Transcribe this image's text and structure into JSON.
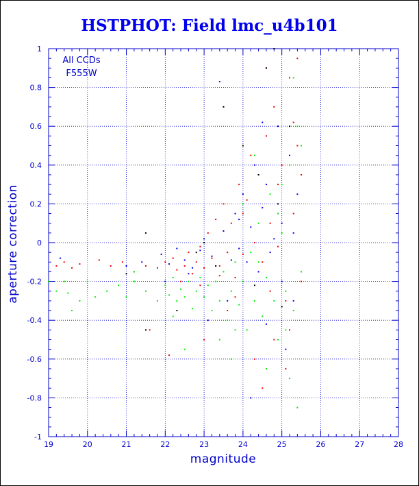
{
  "chart_data": {
    "type": "scatter",
    "title": "HSTPHOT: Field lmc_u4b101",
    "xlabel": "magnitude",
    "ylabel": "aperture correction",
    "xlim": [
      19,
      28
    ],
    "ylim": [
      -1,
      1
    ],
    "x_ticks": [
      19,
      20,
      21,
      22,
      23,
      24,
      25,
      26,
      27,
      28
    ],
    "y_ticks": [
      -1,
      -0.8,
      -0.6,
      -0.4,
      -0.2,
      0,
      0.2,
      0.4,
      0.6,
      0.8,
      1
    ],
    "grid": true,
    "annotations": [
      "All CCDs",
      "F555W"
    ],
    "series": [
      {
        "color": "#ee0000",
        "points": [
          [
            19.2,
            -0.12
          ],
          [
            19.4,
            -0.1
          ],
          [
            19.6,
            -0.13
          ],
          [
            19.8,
            -0.11
          ],
          [
            20.3,
            -0.09
          ],
          [
            20.6,
            -0.12
          ],
          [
            20.9,
            -0.1
          ],
          [
            21.2,
            -0.15
          ],
          [
            21.5,
            -0.12
          ],
          [
            21.8,
            -0.13
          ],
          [
            22.0,
            -0.1
          ],
          [
            22.2,
            -0.08
          ],
          [
            22.3,
            -0.14
          ],
          [
            22.5,
            -0.12
          ],
          [
            22.6,
            -0.05
          ],
          [
            22.7,
            -0.16
          ],
          [
            22.8,
            -0.1
          ],
          [
            22.9,
            -0.02
          ],
          [
            23.0,
            -0.13
          ],
          [
            23.1,
            0.05
          ],
          [
            23.2,
            -0.08
          ],
          [
            23.3,
            0.12
          ],
          [
            23.4,
            -0.12
          ],
          [
            23.5,
            0.2
          ],
          [
            23.6,
            -0.05
          ],
          [
            23.7,
            0.1
          ],
          [
            23.8,
            -0.18
          ],
          [
            23.9,
            0.3
          ],
          [
            24.0,
            -0.06
          ],
          [
            24.1,
            0.22
          ],
          [
            24.2,
            0.45
          ],
          [
            24.3,
            0.0
          ],
          [
            24.4,
            0.35
          ],
          [
            24.5,
            -0.1
          ],
          [
            24.6,
            0.55
          ],
          [
            24.7,
            -0.25
          ],
          [
            24.8,
            0.7
          ],
          [
            24.9,
            -0.02
          ],
          [
            25.0,
            0.4
          ],
          [
            25.1,
            -0.3
          ],
          [
            25.2,
            0.85
          ],
          [
            25.3,
            0.15
          ],
          [
            25.4,
            0.95
          ],
          [
            25.5,
            -0.2
          ],
          [
            23.0,
            -0.5
          ],
          [
            23.6,
            -0.35
          ],
          [
            24.3,
            -0.6
          ],
          [
            24.8,
            -0.5
          ],
          [
            25.2,
            -0.45
          ],
          [
            25.4,
            0.5
          ],
          [
            24.6,
            0.9
          ],
          [
            22.1,
            -0.58
          ],
          [
            21.6,
            -0.45
          ],
          [
            24.0,
            0.15
          ],
          [
            23.8,
            -0.28
          ],
          [
            22.4,
            -0.2
          ],
          [
            25.3,
            0.62
          ],
          [
            24.9,
            0.3
          ],
          [
            25.1,
            -0.65
          ],
          [
            24.5,
            -0.75
          ],
          [
            24.7,
            0.1
          ],
          [
            25.5,
            0.35
          ],
          [
            23.4,
            -0.17
          ],
          [
            22.9,
            -0.22
          ]
        ]
      },
      {
        "color": "#0000ee",
        "points": [
          [
            19.3,
            -0.08
          ],
          [
            21.0,
            -0.12
          ],
          [
            21.4,
            -0.1
          ],
          [
            21.9,
            -0.06
          ],
          [
            22.1,
            -0.11
          ],
          [
            22.3,
            -0.03
          ],
          [
            22.5,
            -0.09
          ],
          [
            22.7,
            -0.13
          ],
          [
            22.9,
            -0.04
          ],
          [
            23.0,
            0.02
          ],
          [
            23.2,
            -0.07
          ],
          [
            23.3,
            -0.12
          ],
          [
            23.5,
            0.06
          ],
          [
            23.7,
            -0.09
          ],
          [
            23.8,
            0.15
          ],
          [
            23.9,
            -0.03
          ],
          [
            24.0,
            0.25
          ],
          [
            24.1,
            -0.1
          ],
          [
            24.2,
            0.08
          ],
          [
            24.3,
            0.4
          ],
          [
            24.4,
            -0.15
          ],
          [
            24.5,
            0.18
          ],
          [
            24.6,
            0.3
          ],
          [
            24.7,
            -0.05
          ],
          [
            24.9,
            0.6
          ],
          [
            25.0,
            0.1
          ],
          [
            25.2,
            0.45
          ],
          [
            25.3,
            -0.3
          ],
          [
            25.4,
            0.25
          ],
          [
            22.0,
            -0.2
          ],
          [
            23.6,
            -0.3
          ],
          [
            24.6,
            -0.42
          ],
          [
            25.1,
            -0.55
          ],
          [
            23.4,
            0.83
          ],
          [
            24.5,
            0.62
          ],
          [
            25.3,
            0.05
          ],
          [
            24.2,
            -0.8
          ],
          [
            23.1,
            -0.4
          ],
          [
            22.6,
            -0.16
          ],
          [
            24.8,
            0.02
          ],
          [
            25.0,
            -0.2
          ],
          [
            23.9,
            0.12
          ]
        ]
      },
      {
        "color": "#000000",
        "points": [
          [
            21.0,
            -0.16
          ],
          [
            21.5,
            0.05
          ],
          [
            22.3,
            -0.35
          ],
          [
            23.0,
            0.0
          ],
          [
            23.5,
            0.7
          ],
          [
            24.0,
            0.5
          ],
          [
            24.6,
            0.9
          ],
          [
            24.8,
            1.0
          ],
          [
            25.2,
            0.6
          ],
          [
            24.3,
            -0.22
          ],
          [
            21.5,
            -0.45
          ],
          [
            23.3,
            -0.12
          ],
          [
            25.0,
            -0.33
          ],
          [
            24.9,
            0.2
          ],
          [
            22.8,
            -0.05
          ],
          [
            24.4,
            0.35
          ]
        ]
      },
      {
        "color": "#00ee00",
        "points": [
          [
            19.0,
            -0.2
          ],
          [
            19.2,
            -0.25
          ],
          [
            19.4,
            -0.2
          ],
          [
            19.5,
            -0.26
          ],
          [
            19.8,
            -0.3
          ],
          [
            20.0,
            -0.2
          ],
          [
            20.5,
            -0.25
          ],
          [
            20.8,
            -0.22
          ],
          [
            21.0,
            -0.28
          ],
          [
            21.2,
            -0.2
          ],
          [
            21.5,
            -0.25
          ],
          [
            21.8,
            -0.3
          ],
          [
            22.0,
            -0.22
          ],
          [
            22.1,
            -0.27
          ],
          [
            22.2,
            -0.18
          ],
          [
            22.3,
            -0.3
          ],
          [
            22.4,
            -0.24
          ],
          [
            22.5,
            -0.28
          ],
          [
            22.6,
            -0.2
          ],
          [
            22.7,
            -0.34
          ],
          [
            22.8,
            -0.25
          ],
          [
            22.9,
            -0.18
          ],
          [
            23.0,
            -0.28
          ],
          [
            23.1,
            -0.22
          ],
          [
            23.2,
            -0.35
          ],
          [
            23.3,
            -0.2
          ],
          [
            23.4,
            -0.3
          ],
          [
            23.5,
            -0.15
          ],
          [
            23.6,
            -0.4
          ],
          [
            23.7,
            -0.25
          ],
          [
            23.8,
            -0.1
          ],
          [
            23.9,
            -0.32
          ],
          [
            24.0,
            -0.2
          ],
          [
            24.1,
            -0.45
          ],
          [
            24.2,
            -0.05
          ],
          [
            24.3,
            -0.3
          ],
          [
            24.4,
            0.1
          ],
          [
            24.5,
            -0.38
          ],
          [
            24.6,
            -0.18
          ],
          [
            24.7,
            0.25
          ],
          [
            24.8,
            -0.3
          ],
          [
            24.9,
            -0.5
          ],
          [
            25.0,
            0.05
          ],
          [
            25.1,
            -0.25
          ],
          [
            25.2,
            0.4
          ],
          [
            25.3,
            -0.35
          ],
          [
            25.4,
            0.6
          ],
          [
            25.5,
            -0.15
          ],
          [
            25.3,
            0.85
          ],
          [
            25.2,
            -0.7
          ],
          [
            25.4,
            -0.85
          ],
          [
            24.6,
            -0.65
          ],
          [
            23.7,
            -0.6
          ],
          [
            22.5,
            -0.55
          ],
          [
            21.2,
            -0.15
          ],
          [
            23.4,
            -0.5
          ],
          [
            24.0,
            0.2
          ],
          [
            24.4,
            -0.1
          ],
          [
            25.0,
            0.3
          ],
          [
            25.1,
            -0.45
          ],
          [
            22.2,
            -0.38
          ],
          [
            23.8,
            -0.45
          ],
          [
            24.9,
            0.15
          ],
          [
            19.6,
            -0.35
          ],
          [
            20.2,
            -0.28
          ],
          [
            24.3,
            0.45
          ],
          [
            25.5,
            0.5
          ]
        ]
      }
    ]
  }
}
